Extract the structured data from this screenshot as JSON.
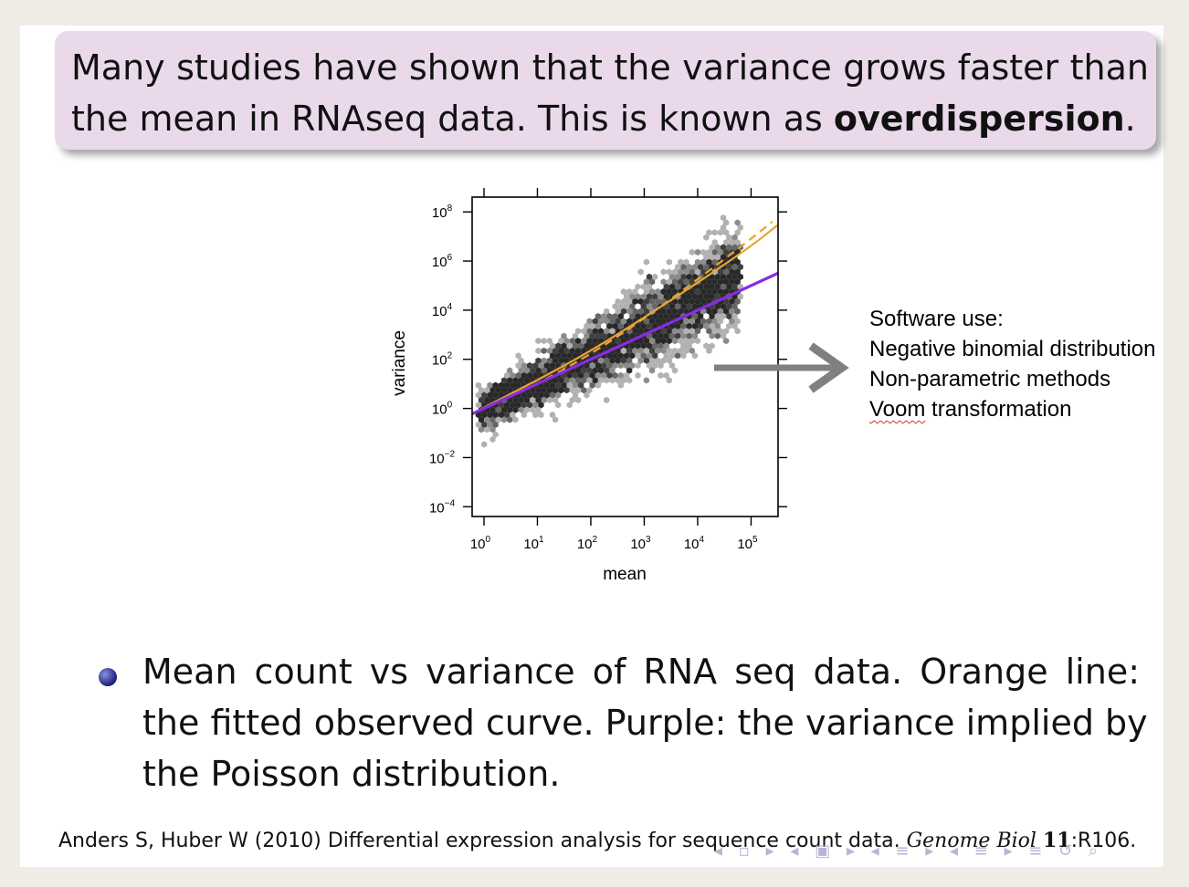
{
  "block": {
    "line1": "Many studies have shown that the variance grows faster than",
    "line2_pre": "the mean in RNAseq data.  This is known as ",
    "line2_bold": "overdispersion",
    "line2_post": "."
  },
  "chart_data": {
    "type": "scatter",
    "title": "",
    "xlabel": "mean",
    "ylabel": "variance",
    "x_scale": "log10",
    "y_scale": "log10",
    "xlim": [
      0.6,
      320000
    ],
    "ylim": [
      4e-05,
      400000000
    ],
    "x_ticks": [
      "10^0",
      "10^1",
      "10^2",
      "10^3",
      "10^4",
      "10^5"
    ],
    "y_ticks": [
      "10^-4",
      "10^-2",
      "10^0",
      "10^2",
      "10^4",
      "10^6",
      "10^8"
    ],
    "series": [
      {
        "kind": "hexbin-density",
        "color": "#555555"
      },
      {
        "kind": "line",
        "style": "solid",
        "color": "#e8a531",
        "x": [
          0.6,
          1,
          10,
          100,
          1000,
          10000,
          100000,
          320000
        ],
        "y": [
          0.6,
          1.1,
          14,
          220,
          5000,
          130000,
          4000000,
          30000000
        ]
      },
      {
        "kind": "line",
        "style": "dashed",
        "color": "#e8a531",
        "x": [
          1,
          10,
          100,
          1000,
          10000,
          100000,
          250000
        ],
        "y": [
          1,
          10,
          160,
          4500,
          180000,
          8000000,
          40000000
        ]
      },
      {
        "kind": "line",
        "style": "solid",
        "color": "#8a2be2",
        "x": [
          0.6,
          320000
        ],
        "y": [
          0.6,
          320000
        ]
      }
    ]
  },
  "software": {
    "title": "Software use:",
    "items": [
      "Negative binomial distribution",
      "Non-parametric methods"
    ],
    "last_prefix": "Voom",
    "last_suffix": " transformation"
  },
  "bullet": {
    "line1": "Mean count vs variance of RNA seq data.  Orange line:",
    "line2": "the fitted observed curve.  Purple: the variance implied by",
    "line3": "the Poisson distribution."
  },
  "reference": {
    "authors": "Anders S, Huber W (2010) Differential expression analysis for sequence count data. ",
    "journal": "Genome Biol",
    "volume": "11",
    "page": ":R106."
  },
  "colors": {
    "block_bg": "#e9d9ea",
    "orange": "#e8a531",
    "purple": "#8a2be2",
    "arrow": "#808080"
  }
}
